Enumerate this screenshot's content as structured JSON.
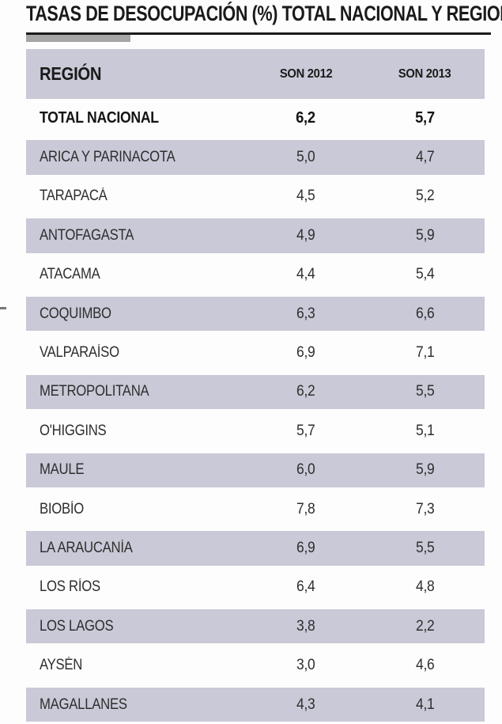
{
  "title": "TASAS DE DESOCUPACIÓN (%) TOTAL NACIONAL Y REGIONES",
  "table": {
    "columns": [
      "REGIÓN",
      "SON 2012",
      "SON 2013"
    ],
    "rows": [
      {
        "region": "TOTAL NACIONAL",
        "son2012": "6,2",
        "son2013": "5,7"
      },
      {
        "region": "ARICA Y PARINACOTA",
        "son2012": "5,0",
        "son2013": "4,7"
      },
      {
        "region": "TARAPACÁ",
        "son2012": "4,5",
        "son2013": "5,2"
      },
      {
        "region": "ANTOFAGASTA",
        "son2012": "4,9",
        "son2013": "5,9"
      },
      {
        "region": "ATACAMA",
        "son2012": "4,4",
        "son2013": "5,4"
      },
      {
        "region": "COQUIMBO",
        "son2012": "6,3",
        "son2013": "6,6"
      },
      {
        "region": "VALPARAÍSO",
        "son2012": "6,9",
        "son2013": "7,1"
      },
      {
        "region": "METROPOLITANA",
        "son2012": "6,2",
        "son2013": "5,5"
      },
      {
        "region": "O'HIGGINS",
        "son2012": "5,7",
        "son2013": "5,1"
      },
      {
        "region": "MAULE",
        "son2012": "6,0",
        "son2013": "5,9"
      },
      {
        "region": "BIOBÍO",
        "son2012": "7,8",
        "son2013": "7,3"
      },
      {
        "region": "LA ARAUCANÍA",
        "son2012": "6,9",
        "son2013": "5,5"
      },
      {
        "region": "LOS RÍOS",
        "son2012": "6,4",
        "son2013": "4,8"
      },
      {
        "region": "LOS LAGOS",
        "son2012": "3,8",
        "son2013": "2,2"
      },
      {
        "region": "AYSÉN",
        "son2012": "3,0",
        "son2013": "4,6"
      },
      {
        "region": "MAGALLANES",
        "son2012": "4,3",
        "son2013": "4,1"
      }
    ]
  },
  "chart_data": {
    "type": "table",
    "title": "TASAS DE DESOCUPACIÓN (%) TOTAL NACIONAL Y REGIONES",
    "columns": [
      "REGIÓN",
      "SON 2012",
      "SON 2013"
    ],
    "categories": [
      "TOTAL NACIONAL",
      "ARICA Y PARINACOTA",
      "TARAPACÁ",
      "ANTOFAGASTA",
      "ATACAMA",
      "COQUIMBO",
      "VALPARAÍSO",
      "METROPOLITANA",
      "O'HIGGINS",
      "MAULE",
      "BIOBÍO",
      "LA ARAUCANÍA",
      "LOS RÍOS",
      "LOS LAGOS",
      "AYSÉN",
      "MAGALLANES"
    ],
    "series": [
      {
        "name": "SON 2012",
        "values": [
          6.2,
          5.0,
          4.5,
          4.9,
          4.4,
          6.3,
          6.9,
          6.2,
          5.7,
          6.0,
          7.8,
          6.9,
          6.4,
          3.8,
          3.0,
          4.3
        ]
      },
      {
        "name": "SON 2013",
        "values": [
          5.7,
          4.7,
          5.2,
          5.9,
          5.4,
          6.6,
          7.1,
          5.5,
          5.1,
          5.9,
          7.3,
          5.5,
          4.8,
          2.2,
          4.6,
          4.1
        ]
      }
    ],
    "unit": "%"
  },
  "colors": {
    "row_band": "#c9c9d7",
    "accent_bar": "#a6a6a6",
    "rule": "#1b1b1b",
    "background": "#fdfdfd",
    "text": "#1a1a1a"
  }
}
